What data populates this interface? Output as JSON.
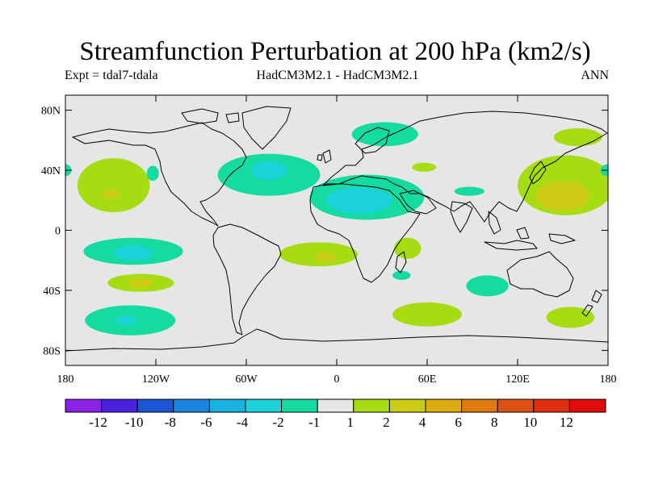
{
  "title": "Streamfunction Perturbation at 200 hPa (km2/s)",
  "experiment": "Expt = tdal7-tdala",
  "model_label": "HadCM3M2.1 - HadCM3M2.1",
  "season": "ANN",
  "latitude_ticks": [
    {
      "lat": 80,
      "label": "80N"
    },
    {
      "lat": 40,
      "label": "40N"
    },
    {
      "lat": 0,
      "label": "0"
    },
    {
      "lat": -40,
      "label": "40S"
    },
    {
      "lat": -80,
      "label": "80S"
    }
  ],
  "longitude_ticks": [
    {
      "lon": -180,
      "label": "180"
    },
    {
      "lon": -120,
      "label": "120W"
    },
    {
      "lon": -60,
      "label": "60W"
    },
    {
      "lon": 0,
      "label": "0"
    },
    {
      "lon": 60,
      "label": "60E"
    },
    {
      "lon": 120,
      "label": "120E"
    },
    {
      "lon": 180,
      "label": "180"
    }
  ],
  "colorbar": {
    "colors": [
      "#8a22e6",
      "#4a22dc",
      "#1a55d6",
      "#1a86e0",
      "#16b2e0",
      "#1ad2d8",
      "#14dca0",
      "#e6e6e6",
      "#a6dc12",
      "#cccc14",
      "#dcac10",
      "#e07a10",
      "#dc5010",
      "#e02e10",
      "#e00c0c"
    ],
    "boundaries": [
      "-12",
      "-10",
      "-8",
      "-6",
      "-4",
      "-2",
      "-1",
      "1",
      "2",
      "4",
      "6",
      "8",
      "10",
      "12"
    ]
  },
  "anomalies": [
    {
      "name": "n-atlantic-negative",
      "lon": -45,
      "lat": 37,
      "rx": 34,
      "ry": 14,
      "level": -2
    },
    {
      "name": "n-atlantic-core",
      "lon": -45,
      "lat": 40,
      "rx": 12,
      "ry": 6,
      "level": -4
    },
    {
      "name": "n-africa-negative",
      "lon": 20,
      "lat": 22,
      "rx": 38,
      "ry": 15,
      "level": -2
    },
    {
      "name": "n-africa-core",
      "lon": 15,
      "lat": 20,
      "rx": 22,
      "ry": 9,
      "level": -4
    },
    {
      "name": "n-europe-negative",
      "lon": 32,
      "lat": 64,
      "rx": 22,
      "ry": 8,
      "level": -2
    },
    {
      "name": "arabia-positive",
      "lon": 58,
      "lat": 42,
      "rx": 8,
      "ry": 3,
      "level": 2
    },
    {
      "name": "n-indian-negative",
      "lon": 88,
      "lat": 26,
      "rx": 10,
      "ry": 3,
      "level": -2
    },
    {
      "name": "ne-pacific-positive",
      "lon": -148,
      "lat": 30,
      "rx": 24,
      "ry": 18,
      "level": 2
    },
    {
      "name": "ne-pacific-core",
      "lon": -150,
      "lat": 24,
      "rx": 6,
      "ry": 3,
      "level": 4
    },
    {
      "name": "w-pacific-positive",
      "lon": 152,
      "lat": 30,
      "rx": 32,
      "ry": 20,
      "level": 2
    },
    {
      "name": "w-pacific-core",
      "lon": 150,
      "lat": 23,
      "rx": 18,
      "ry": 10,
      "level": 4
    },
    {
      "name": "ne-asia-positive",
      "lon": 160,
      "lat": 62,
      "rx": 16,
      "ry": 6,
      "level": 2
    },
    {
      "name": "kamchatka-positive",
      "lon": 180,
      "lat": 40,
      "rx": 5,
      "ry": 4,
      "level": -2
    },
    {
      "name": "atlantic-negative-tip",
      "lon": -180,
      "lat": 40,
      "rx": 4,
      "ry": 4,
      "level": -2
    },
    {
      "name": "canada-negative-blob",
      "lon": -122,
      "lat": 38,
      "rx": 4,
      "ry": 5,
      "level": -2
    },
    {
      "name": "se-pacific-negative",
      "lon": -135,
      "lat": -14,
      "rx": 33,
      "ry": 9,
      "level": -2
    },
    {
      "name": "se-pacific-core",
      "lon": -135,
      "lat": -15,
      "rx": 13,
      "ry": 5,
      "level": -4
    },
    {
      "name": "s-atlantic-positive",
      "lon": -12,
      "lat": -16,
      "rx": 26,
      "ry": 8,
      "level": 2
    },
    {
      "name": "s-atlantic-core",
      "lon": -8,
      "lat": -18,
      "rx": 7,
      "ry": 3,
      "level": 4
    },
    {
      "name": "mozambique-positive",
      "lon": 47,
      "lat": -12,
      "rx": 9,
      "ry": 7,
      "level": 2
    },
    {
      "name": "s-africa-negative",
      "lon": 43,
      "lat": -30,
      "rx": 6,
      "ry": 3,
      "level": -2
    },
    {
      "name": "s-pacific-positive",
      "lon": -130,
      "lat": -35,
      "rx": 22,
      "ry": 6,
      "level": 2
    },
    {
      "name": "s-pacific-core",
      "lon": -130,
      "lat": -35,
      "rx": 8,
      "ry": 3,
      "level": 4
    },
    {
      "name": "southern-ocean-negative",
      "lon": -137,
      "lat": -60,
      "rx": 30,
      "ry": 10,
      "level": -2
    },
    {
      "name": "southern-ocean-core",
      "lon": -140,
      "lat": -60,
      "rx": 7,
      "ry": 3,
      "level": -4
    },
    {
      "name": "s-indian-positive",
      "lon": 60,
      "lat": -56,
      "rx": 23,
      "ry": 8,
      "level": 2
    },
    {
      "name": "s-indian-negative",
      "lon": 100,
      "lat": -37,
      "rx": 14,
      "ry": 7,
      "level": -2
    },
    {
      "name": "s-tasman-positive",
      "lon": 155,
      "lat": -58,
      "rx": 16,
      "ry": 7,
      "level": 2
    }
  ]
}
